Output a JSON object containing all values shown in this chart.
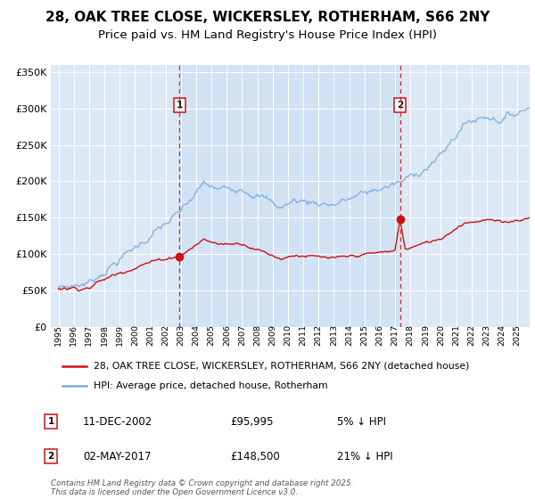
{
  "title_line1": "28, OAK TREE CLOSE, WICKERSLEY, ROTHERHAM, S66 2NY",
  "title_line2": "Price paid vs. HM Land Registry's House Price Index (HPI)",
  "legend_entry1": "28, OAK TREE CLOSE, WICKERSLEY, ROTHERHAM, S66 2NY (detached house)",
  "legend_entry2": "HPI: Average price, detached house, Rotherham",
  "annotation1_date": "11-DEC-2002",
  "annotation1_price": "£95,995",
  "annotation1_hpi": "5% ↓ HPI",
  "annotation2_date": "02-MAY-2017",
  "annotation2_price": "£148,500",
  "annotation2_hpi": "21% ↓ HPI",
  "copyright_text": "Contains HM Land Registry data © Crown copyright and database right 2025.\nThis data is licensed under the Open Government Licence v3.0.",
  "sale1_year": 2002.92,
  "sale1_price": 95995,
  "sale2_year": 2017.33,
  "sale2_price": 148500,
  "ylim_min": 0,
  "ylim_max": 360000,
  "xlim_min": 1994.5,
  "xlim_max": 2025.8,
  "hpi_color": "#7aaddc",
  "price_color": "#cc1111",
  "bg_color": "#dce8f5",
  "shade_color": "#ccdff5",
  "vline_color": "#dd2222",
  "grid_color": "#c8d8e8",
  "box_edge_color": "#cc1111",
  "title_fontsize": 11,
  "subtitle_fontsize": 9.5
}
